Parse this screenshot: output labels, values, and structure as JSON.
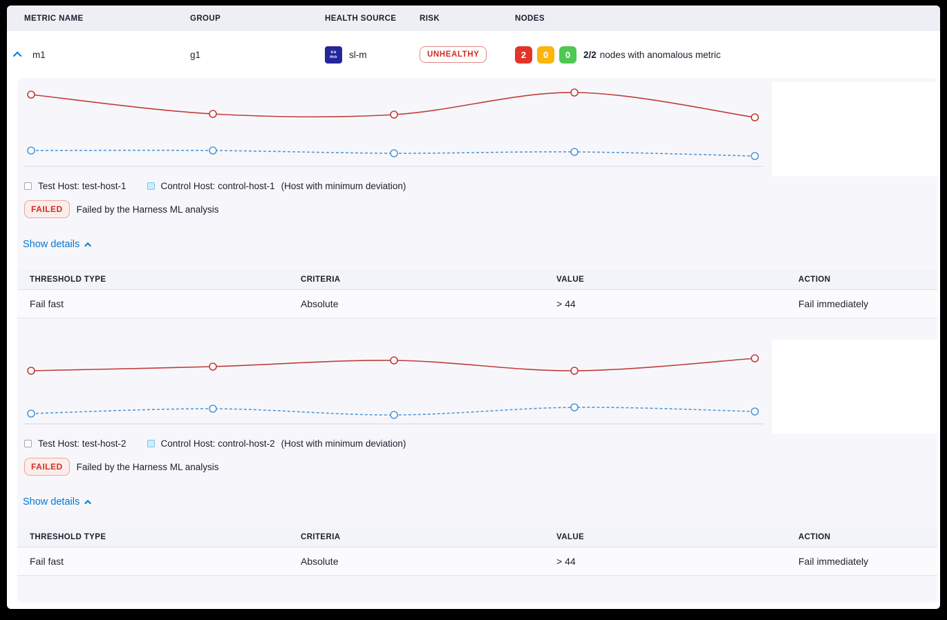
{
  "colors": {
    "accent_blue": "#0278d5",
    "risk_red": "#cf2d23",
    "node_red": "#e3342a",
    "node_yellow": "#fcb40e",
    "node_green": "#4dc952",
    "test_line": "#c13c37",
    "control_line": "#4f97d9"
  },
  "table_header": {
    "metric_name": "METRIC NAME",
    "group": "GROUP",
    "health_source": "HEALTH SOURCE",
    "risk": "RISK",
    "nodes": "NODES"
  },
  "row": {
    "metric": "m1",
    "group": "g1",
    "health_source": {
      "icon": "sumo-logic-icon",
      "icon_glyph": [
        "su",
        "mo"
      ],
      "label": "sl-m"
    },
    "risk": "UNHEALTHY",
    "nodes": {
      "counts": [
        {
          "value": "2",
          "color": "#e3342a"
        },
        {
          "value": "0",
          "color": "#fcb40e"
        },
        {
          "value": "0",
          "color": "#4dc952"
        }
      ],
      "summary_bold": "2/2",
      "summary_text": "nodes with anomalous metric"
    }
  },
  "sections": [
    {
      "legend": {
        "test_label": "Test Host: test-host-1",
        "control_label": "Control Host: control-host-1",
        "note": "(Host with minimum deviation)"
      },
      "status": {
        "badge": "FAILED",
        "message": "Failed by the Harness ML analysis"
      },
      "details_toggle": "Show details",
      "table": {
        "headers": [
          "THRESHOLD TYPE",
          "CRITERIA",
          "VALUE",
          "ACTION"
        ],
        "rows": [
          [
            "Fail fast",
            "Absolute",
            "> 44",
            "Fail immediately"
          ]
        ]
      }
    },
    {
      "legend": {
        "test_label": "Test Host: test-host-2",
        "control_label": "Control Host: control-host-2",
        "note": "(Host with minimum deviation)"
      },
      "status": {
        "badge": "FAILED",
        "message": "Failed by the Harness ML analysis"
      },
      "details_toggle": "Show details",
      "table": {
        "headers": [
          "THRESHOLD TYPE",
          "CRITERIA",
          "VALUE",
          "ACTION"
        ],
        "rows": [
          [
            "Fail fast",
            "Absolute",
            "> 44",
            "Fail immediately"
          ]
        ]
      }
    }
  ],
  "chart_data": [
    {
      "type": "line",
      "title": "",
      "x": [
        1,
        2,
        3,
        4,
        5
      ],
      "axes": "hidden",
      "legend_position": "below",
      "series": [
        {
          "name": "Test Host: test-host-1",
          "color": "#c13c37",
          "dash": "solid",
          "marker": "open-circle",
          "values": [
            104,
            76,
            75,
            107,
            71
          ]
        },
        {
          "name": "Control Host: control-host-1",
          "color": "#4f97d9",
          "dash": "dashed",
          "marker": "open-circle",
          "values": [
            23,
            23,
            19,
            21,
            15
          ]
        }
      ]
    },
    {
      "type": "line",
      "title": "",
      "x": [
        1,
        2,
        3,
        4,
        5
      ],
      "axes": "hidden",
      "legend_position": "below",
      "series": [
        {
          "name": "Test Host: test-host-2",
          "color": "#c13c37",
          "dash": "solid",
          "marker": "open-circle",
          "values": [
            77,
            83,
            92,
            77,
            95
          ]
        },
        {
          "name": "Control Host: control-host-2",
          "color": "#4f97d9",
          "dash": "dashed",
          "marker": "open-circle",
          "values": [
            15,
            22,
            13,
            24,
            18
          ]
        }
      ]
    }
  ]
}
